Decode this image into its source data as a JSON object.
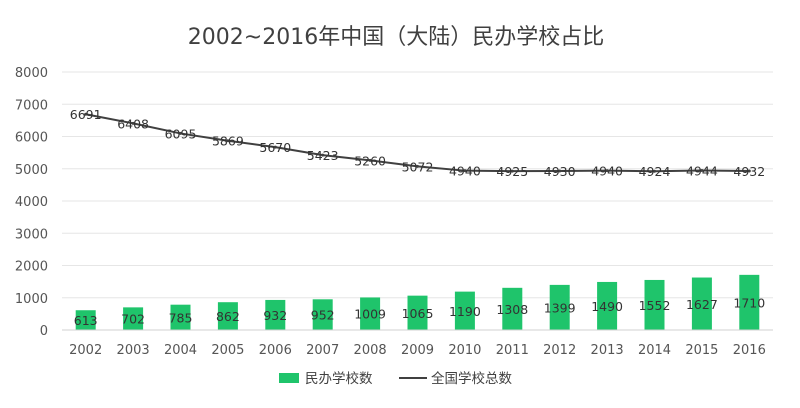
{
  "chart_data": {
    "type": "bar+line",
    "title": "2002~2016年中国（大陆）民办学校占比",
    "categories": [
      "2002",
      "2003",
      "2004",
      "2005",
      "2006",
      "2007",
      "2008",
      "2009",
      "2010",
      "2011",
      "2012",
      "2013",
      "2014",
      "2015",
      "2016"
    ],
    "series": [
      {
        "name": "民办学校数",
        "type": "bar",
        "color": "#1fc46b",
        "values": [
          613,
          702,
          785,
          862,
          932,
          952,
          1009,
          1065,
          1190,
          1308,
          1399,
          1490,
          1552,
          1627,
          1710
        ]
      },
      {
        "name": "全国学校总数",
        "type": "line",
        "color": "#404040",
        "values": [
          6691,
          6408,
          6095,
          5869,
          5670,
          5423,
          5260,
          5072,
          4940,
          4925,
          4930,
          4940,
          4924,
          4944,
          4932
        ]
      }
    ],
    "yticks": [
      "0",
      "1000",
      "2000",
      "3000",
      "4000",
      "5000",
      "6000",
      "7000",
      "8000"
    ],
    "ylim": [
      0,
      8000
    ],
    "grid": true,
    "legend_position": "bottom"
  }
}
